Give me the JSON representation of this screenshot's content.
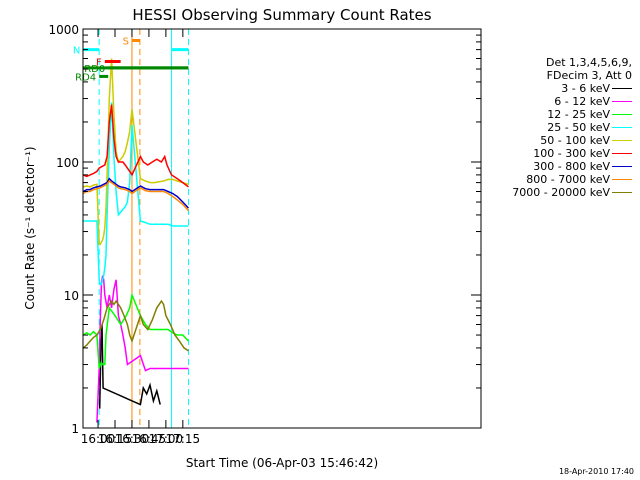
{
  "chart_data": {
    "type": "line",
    "title": "HESSI Observing Summary Count Rates",
    "xlabel": "Start Time (06-Apr-03 15:46:42)",
    "ylabel": "Count Rate (s⁻¹ detector⁻¹)",
    "x_unit": "minutes of day (UT)",
    "xlim": [
      946.7,
      1298.7
    ],
    "ylim": [
      1,
      1000
    ],
    "yscale": "log",
    "xticks": [
      {
        "value": 960,
        "label": "16:00"
      },
      {
        "value": 975,
        "label": "16:15"
      },
      {
        "value": 990,
        "label": "16:30"
      },
      {
        "value": 1005,
        "label": "16:45"
      },
      {
        "value": 1020,
        "label": "17:00"
      },
      {
        "value": 1035,
        "label": "17:15"
      }
    ],
    "yticks": [
      {
        "value": 1,
        "label": "1"
      },
      {
        "value": 10,
        "label": "10"
      },
      {
        "value": 100,
        "label": "100"
      },
      {
        "value": 1000,
        "label": "1000"
      }
    ],
    "legend_header": [
      "Det 1,3,4,5,6,9,",
      "FDecim 3, Att 0"
    ],
    "legend_placement": "right",
    "series": [
      {
        "name": "3 - 6 keV",
        "color": "#000000",
        "x": [
          961.5,
          962.5,
          963.5,
          964.5,
          997.5,
          1000,
          1003,
          1006,
          1009,
          1012,
          1015
        ],
        "y": [
          1.4,
          4.0,
          6.0,
          2.0,
          1.5,
          2.0,
          1.8,
          2.1,
          1.6,
          1.9,
          1.5
        ]
      },
      {
        "name": "6 - 12 keV",
        "color": "#ff00ff",
        "x": [
          959,
          961,
          962,
          963,
          964,
          965,
          966,
          968,
          970,
          972,
          974,
          976,
          978,
          980,
          982,
          984,
          986,
          997.5,
          1002,
          1006,
          1010,
          1014,
          1018,
          1022,
          1026,
          1030,
          1035,
          1040
        ],
        "y": [
          1.1,
          2.8,
          6.5,
          12.0,
          14.0,
          13.0,
          10.0,
          8.0,
          10.0,
          8.0,
          11.0,
          13.0,
          7.0,
          6.0,
          5.0,
          4.0,
          3.0,
          3.5,
          2.7,
          2.8,
          2.8,
          2.8,
          2.8,
          2.8,
          2.8,
          2.8,
          2.8,
          2.8
        ]
      },
      {
        "name": "12 - 25 keV",
        "color": "#00ff00",
        "x": [
          947,
          950,
          953,
          956,
          959,
          961,
          962,
          963,
          964,
          965,
          966,
          967,
          970,
          975,
          980,
          985,
          988,
          990,
          997.5,
          1002,
          1006,
          1010,
          1014,
          1018,
          1022,
          1026,
          1030,
          1035,
          1040
        ],
        "y": [
          5.0,
          5.2,
          5.0,
          5.3,
          5.0,
          2.8,
          3.0,
          3.1,
          3.0,
          3.0,
          3.0,
          5.0,
          8.0,
          7.0,
          6.0,
          7.0,
          8.0,
          10.0,
          7.0,
          6.0,
          5.5,
          5.5,
          5.5,
          5.5,
          5.5,
          5.2,
          5.0,
          5.0,
          4.5
        ]
      },
      {
        "name": "25 - 50 keV",
        "color": "#00ffff",
        "x": [
          947,
          950,
          953,
          956,
          959,
          961,
          962,
          963,
          964,
          965,
          966,
          967,
          968,
          970,
          972,
          974,
          976,
          978,
          980,
          982,
          984,
          986,
          988,
          990,
          997.5,
          1002,
          1006,
          1010,
          1014,
          1018,
          1022,
          1026,
          1030,
          1035,
          1040
        ],
        "y": [
          36,
          36,
          36,
          36,
          36,
          13,
          12,
          12,
          13,
          14,
          16,
          20,
          40,
          130,
          280,
          110,
          60,
          40,
          42,
          44,
          46,
          50,
          70,
          190,
          36,
          35,
          34,
          34,
          34,
          34,
          34,
          33,
          33,
          33,
          33
        ]
      },
      {
        "name": "50 - 100 keV",
        "color": "#cccc00",
        "x": [
          947,
          950,
          953,
          956,
          959,
          961,
          962,
          963,
          964,
          965,
          966,
          967,
          968,
          970,
          972,
          974,
          976,
          978,
          980,
          982,
          984,
          986,
          988,
          990,
          997.5,
          1002,
          1006,
          1010,
          1014,
          1018,
          1022,
          1026,
          1030,
          1035,
          1040
        ],
        "y": [
          65,
          66,
          65,
          67,
          68,
          24,
          24,
          25,
          26,
          28,
          32,
          45,
          80,
          300,
          600,
          230,
          120,
          100,
          105,
          110,
          120,
          140,
          170,
          250,
          75,
          72,
          70,
          70,
          71,
          72,
          74,
          74,
          72,
          70,
          68
        ]
      },
      {
        "name": "100 - 300 keV",
        "color": "#ff0000",
        "x": [
          947,
          950,
          953,
          956,
          959,
          961,
          963,
          966,
          968,
          970,
          972,
          974,
          976,
          978,
          980,
          982,
          984,
          986,
          988,
          990,
          997.5,
          1000,
          1004,
          1008,
          1012,
          1016,
          1019,
          1021,
          1025,
          1030,
          1035,
          1040
        ],
        "y": [
          80,
          78,
          80,
          82,
          85,
          90,
          92,
          95,
          110,
          200,
          270,
          150,
          110,
          100,
          100,
          100,
          95,
          90,
          85,
          80,
          110,
          100,
          95,
          100,
          105,
          100,
          110,
          95,
          80,
          75,
          70,
          65
        ]
      },
      {
        "name": "300 - 800 keV",
        "color": "#0000cc",
        "x": [
          947,
          950,
          953,
          956,
          959,
          962,
          965,
          968,
          970,
          972,
          974,
          976,
          978,
          980,
          984,
          988,
          990,
          997.5,
          1002,
          1006,
          1010,
          1014,
          1018,
          1022,
          1026,
          1030,
          1035,
          1040
        ],
        "y": [
          60,
          62,
          62,
          64,
          65,
          66,
          68,
          70,
          75,
          72,
          70,
          68,
          66,
          65,
          64,
          62,
          60,
          66,
          63,
          62,
          62,
          62,
          62,
          60,
          58,
          55,
          50,
          45
        ]
      },
      {
        "name": "800 - 7000 keV",
        "color": "#ff8800",
        "x": [
          947,
          950,
          953,
          956,
          959,
          962,
          965,
          968,
          970,
          972,
          974,
          976,
          978,
          980,
          984,
          988,
          990,
          997.5,
          1002,
          1006,
          1010,
          1014,
          1018,
          1022,
          1026,
          1030,
          1035,
          1040
        ],
        "y": [
          58,
          60,
          60,
          62,
          63,
          64,
          66,
          68,
          72,
          70,
          68,
          66,
          64,
          63,
          62,
          60,
          58,
          64,
          61,
          60,
          60,
          60,
          60,
          58,
          55,
          52,
          48,
          43
        ]
      },
      {
        "name": "7000 - 20000 keV",
        "color": "#808000",
        "x": [
          947,
          950,
          953,
          956,
          959,
          962,
          965,
          968,
          970,
          972,
          974,
          976,
          978,
          980,
          983,
          986,
          988,
          990,
          997.5,
          1000,
          1004,
          1008,
          1012,
          1016,
          1018,
          1020,
          1024,
          1028,
          1032,
          1036,
          1040
        ],
        "y": [
          4.0,
          4.2,
          4.5,
          4.8,
          5.0,
          5.5,
          6.5,
          8.0,
          8.5,
          9.0,
          8.5,
          9.0,
          8.5,
          8.0,
          7.0,
          6.0,
          5.0,
          4.5,
          7.0,
          6.0,
          5.5,
          6.5,
          8.0,
          9.0,
          8.5,
          7.0,
          6.0,
          5.0,
          4.5,
          4.0,
          3.8
        ]
      }
    ],
    "flag_bars": [
      {
        "label": "N",
        "color": "#00ffff",
        "segments": [
          [
            947,
            961
          ],
          [
            1025,
            1040
          ]
        ],
        "y": 700
      },
      {
        "label": "F",
        "color": "#ff0000",
        "segments": [
          [
            966,
            980
          ]
        ],
        "y": 570
      },
      {
        "label": "RD0",
        "color": "#008800",
        "segments": [
          [
            969,
            1040
          ]
        ],
        "y": 510
      },
      {
        "label": "RD4",
        "color": "#008800",
        "segments": [
          [
            961,
            969
          ]
        ],
        "y": 440
      },
      {
        "label": "",
        "color": "#008800",
        "segments": [
          [
            947,
            1040
          ]
        ],
        "y": 510
      },
      {
        "label": "S",
        "color": "#ff8800",
        "segments": [
          [
            990,
            997
          ]
        ],
        "y": 820
      }
    ],
    "vlines": [
      {
        "x": 961,
        "color": "#00ffff",
        "style": "dashed"
      },
      {
        "x": 1025,
        "color": "#00ffff",
        "style": "solid"
      },
      {
        "x": 1040,
        "color": "#00ffff",
        "style": "dashed"
      },
      {
        "x": 990,
        "color": "#ff8800",
        "style": "solid"
      },
      {
        "x": 997,
        "color": "#ff8800",
        "style": "dashed"
      }
    ]
  },
  "footer": {
    "timestamp": "18-Apr-2010 17:40"
  }
}
